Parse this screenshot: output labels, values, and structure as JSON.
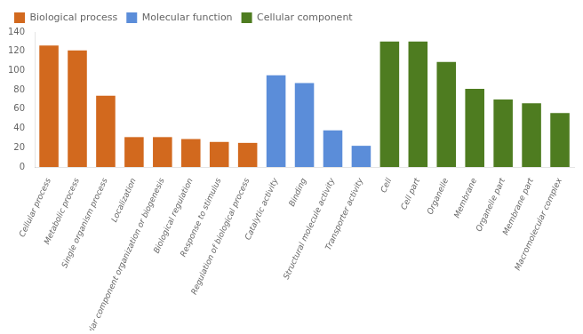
{
  "chart_data": {
    "type": "bar",
    "categories": [
      "Cellular process",
      "Metabolic process",
      "Single organism process",
      "Localization",
      "Singular component organization or biogenesis",
      "Biological regulation",
      "Response to stimulus",
      "Regulation of biological process",
      "Catalytic activity",
      "Binding",
      "Structural molecule activity",
      "Transporter activity",
      "Cell",
      "Cell part",
      "Organelle",
      "Membrane",
      "Organelle part",
      "Membrane part",
      "Macromolecular complex"
    ],
    "series": [
      {
        "name": "Biological process",
        "color": "#d2691e",
        "values": [
          126,
          121,
          74,
          31,
          31,
          29,
          26,
          25,
          null,
          null,
          null,
          null,
          null,
          null,
          null,
          null,
          null,
          null,
          null
        ]
      },
      {
        "name": "Molecular function",
        "color": "#5b8dd9",
        "values": [
          null,
          null,
          null,
          null,
          null,
          null,
          null,
          null,
          95,
          87,
          38,
          22,
          null,
          null,
          null,
          null,
          null,
          null,
          null
        ]
      },
      {
        "name": "Cellular component",
        "color": "#4e7c20",
        "values": [
          null,
          null,
          null,
          null,
          null,
          null,
          null,
          null,
          null,
          null,
          null,
          null,
          130,
          130,
          109,
          81,
          70,
          66,
          56
        ]
      }
    ],
    "ylim": [
      0,
      140
    ],
    "yticks": [
      0,
      20,
      40,
      60,
      80,
      100,
      120,
      140
    ],
    "grid": false,
    "legend": "top"
  }
}
